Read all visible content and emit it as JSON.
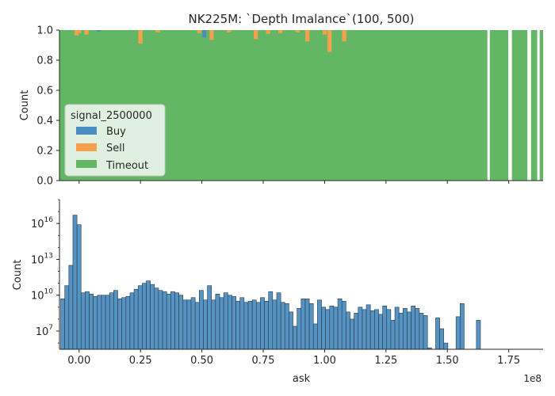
{
  "chart_data": [
    {
      "type": "bar",
      "title": "NK225M: `Depth Imalance`(100, 500)",
      "xlabel": "",
      "ylabel": "Count",
      "ylim": [
        0,
        1.0
      ],
      "yticks": [
        "0.0",
        "0.2",
        "0.4",
        "0.6",
        "0.8",
        "1.0"
      ],
      "stacked_fill": true,
      "x_range": [
        -0.08,
        1.89
      ],
      "legend": {
        "title": "signal_2500000",
        "placement": "lower-left",
        "entries": [
          "Buy",
          "Sell",
          "Timeout"
        ]
      },
      "series": [
        {
          "name": "Buy",
          "color": "#4c8dc0"
        },
        {
          "name": "Sell",
          "color": "#f7a04c"
        },
        {
          "name": "Timeout",
          "color": "#63b663"
        }
      ],
      "timeout_gaps": [
        [
          1.663,
          1.673
        ],
        [
          1.748,
          1.763
        ],
        [
          1.826,
          1.841
        ],
        [
          1.866,
          1.876
        ]
      ],
      "deviations": [
        {
          "x": -0.01,
          "buy": 0.0,
          "sell": 0.035
        },
        {
          "x": 0.0,
          "buy": 0.0,
          "sell": 0.02
        },
        {
          "x": 0.03,
          "buy": 0.0,
          "sell": 0.03
        },
        {
          "x": 0.08,
          "buy": 0.01,
          "sell": 0.0
        },
        {
          "x": 0.25,
          "buy": 0.0,
          "sell": 0.09
        },
        {
          "x": 0.32,
          "buy": 0.0,
          "sell": 0.015
        },
        {
          "x": 0.49,
          "buy": 0.0,
          "sell": 0.02
        },
        {
          "x": 0.51,
          "buy": 0.05,
          "sell": 0.0
        },
        {
          "x": 0.54,
          "buy": 0.0,
          "sell": 0.065
        },
        {
          "x": 0.61,
          "buy": 0.0,
          "sell": 0.015
        },
        {
          "x": 0.72,
          "buy": 0.0,
          "sell": 0.06
        },
        {
          "x": 0.77,
          "buy": 0.0,
          "sell": 0.025
        },
        {
          "x": 0.82,
          "buy": 0.0,
          "sell": 0.02
        },
        {
          "x": 0.89,
          "buy": 0.0,
          "sell": 0.015
        },
        {
          "x": 0.93,
          "buy": 0.0,
          "sell": 0.075
        },
        {
          "x": 1.0,
          "buy": 0.0,
          "sell": 0.03
        },
        {
          "x": 1.02,
          "buy": 0.0,
          "sell": 0.145
        },
        {
          "x": 1.08,
          "buy": 0.0,
          "sell": 0.075
        }
      ]
    },
    {
      "type": "bar",
      "title": "",
      "xlabel": "ask",
      "ylabel": "Count",
      "y_scale": "log",
      "ylim": [
        300000.0,
        1e+18
      ],
      "yticks": [
        {
          "exp": 7,
          "label": "10^7"
        },
        {
          "exp": 10,
          "label": "10^10"
        },
        {
          "exp": 13,
          "label": "10^13"
        },
        {
          "exp": 16,
          "label": "10^16"
        }
      ],
      "xticks": [
        "0.00",
        "0.25",
        "0.50",
        "0.75",
        "1.00",
        "1.25",
        "1.50",
        "1.75"
      ],
      "x_range": [
        -0.08,
        1.89
      ],
      "x_multiplier": "1e8",
      "bar_color": "#4c8dc0",
      "bins": {
        "start": -0.075,
        "width": 0.0166,
        "log10_counts": [
          9.7,
          10.8,
          12.5,
          16.7,
          15.9,
          10.2,
          10.3,
          10.1,
          9.9,
          10.0,
          10.0,
          10.0,
          10.2,
          10.4,
          9.7,
          9.8,
          9.9,
          10.2,
          10.5,
          10.8,
          11.0,
          11.2,
          10.9,
          10.6,
          10.4,
          10.3,
          10.1,
          10.3,
          10.2,
          10.0,
          9.6,
          9.6,
          9.8,
          9.4,
          10.4,
          9.6,
          10.8,
          9.6,
          10.1,
          9.8,
          10.2,
          10.0,
          9.9,
          9.5,
          9.8,
          9.4,
          9.5,
          9.6,
          9.4,
          9.8,
          9.5,
          10.3,
          9.6,
          10.2,
          9.4,
          9.3,
          8.6,
          7.4,
          8.9,
          9.7,
          9.7,
          9.3,
          7.6,
          9.6,
          9.0,
          8.8,
          9.1,
          9.0,
          9.7,
          9.5,
          8.6,
          8.0,
          8.5,
          9.0,
          8.8,
          9.2,
          8.7,
          8.8,
          8.4,
          9.1,
          8.8,
          7.9,
          9.0,
          8.5,
          8.9,
          8.6,
          9.1,
          8.9,
          8.5,
          8.3,
          5.6,
          4.3,
          8.1,
          7.2,
          6.0,
          -1,
          -1,
          8.2,
          9.3,
          -1,
          -1,
          -1,
          7.9
        ]
      }
    }
  ]
}
